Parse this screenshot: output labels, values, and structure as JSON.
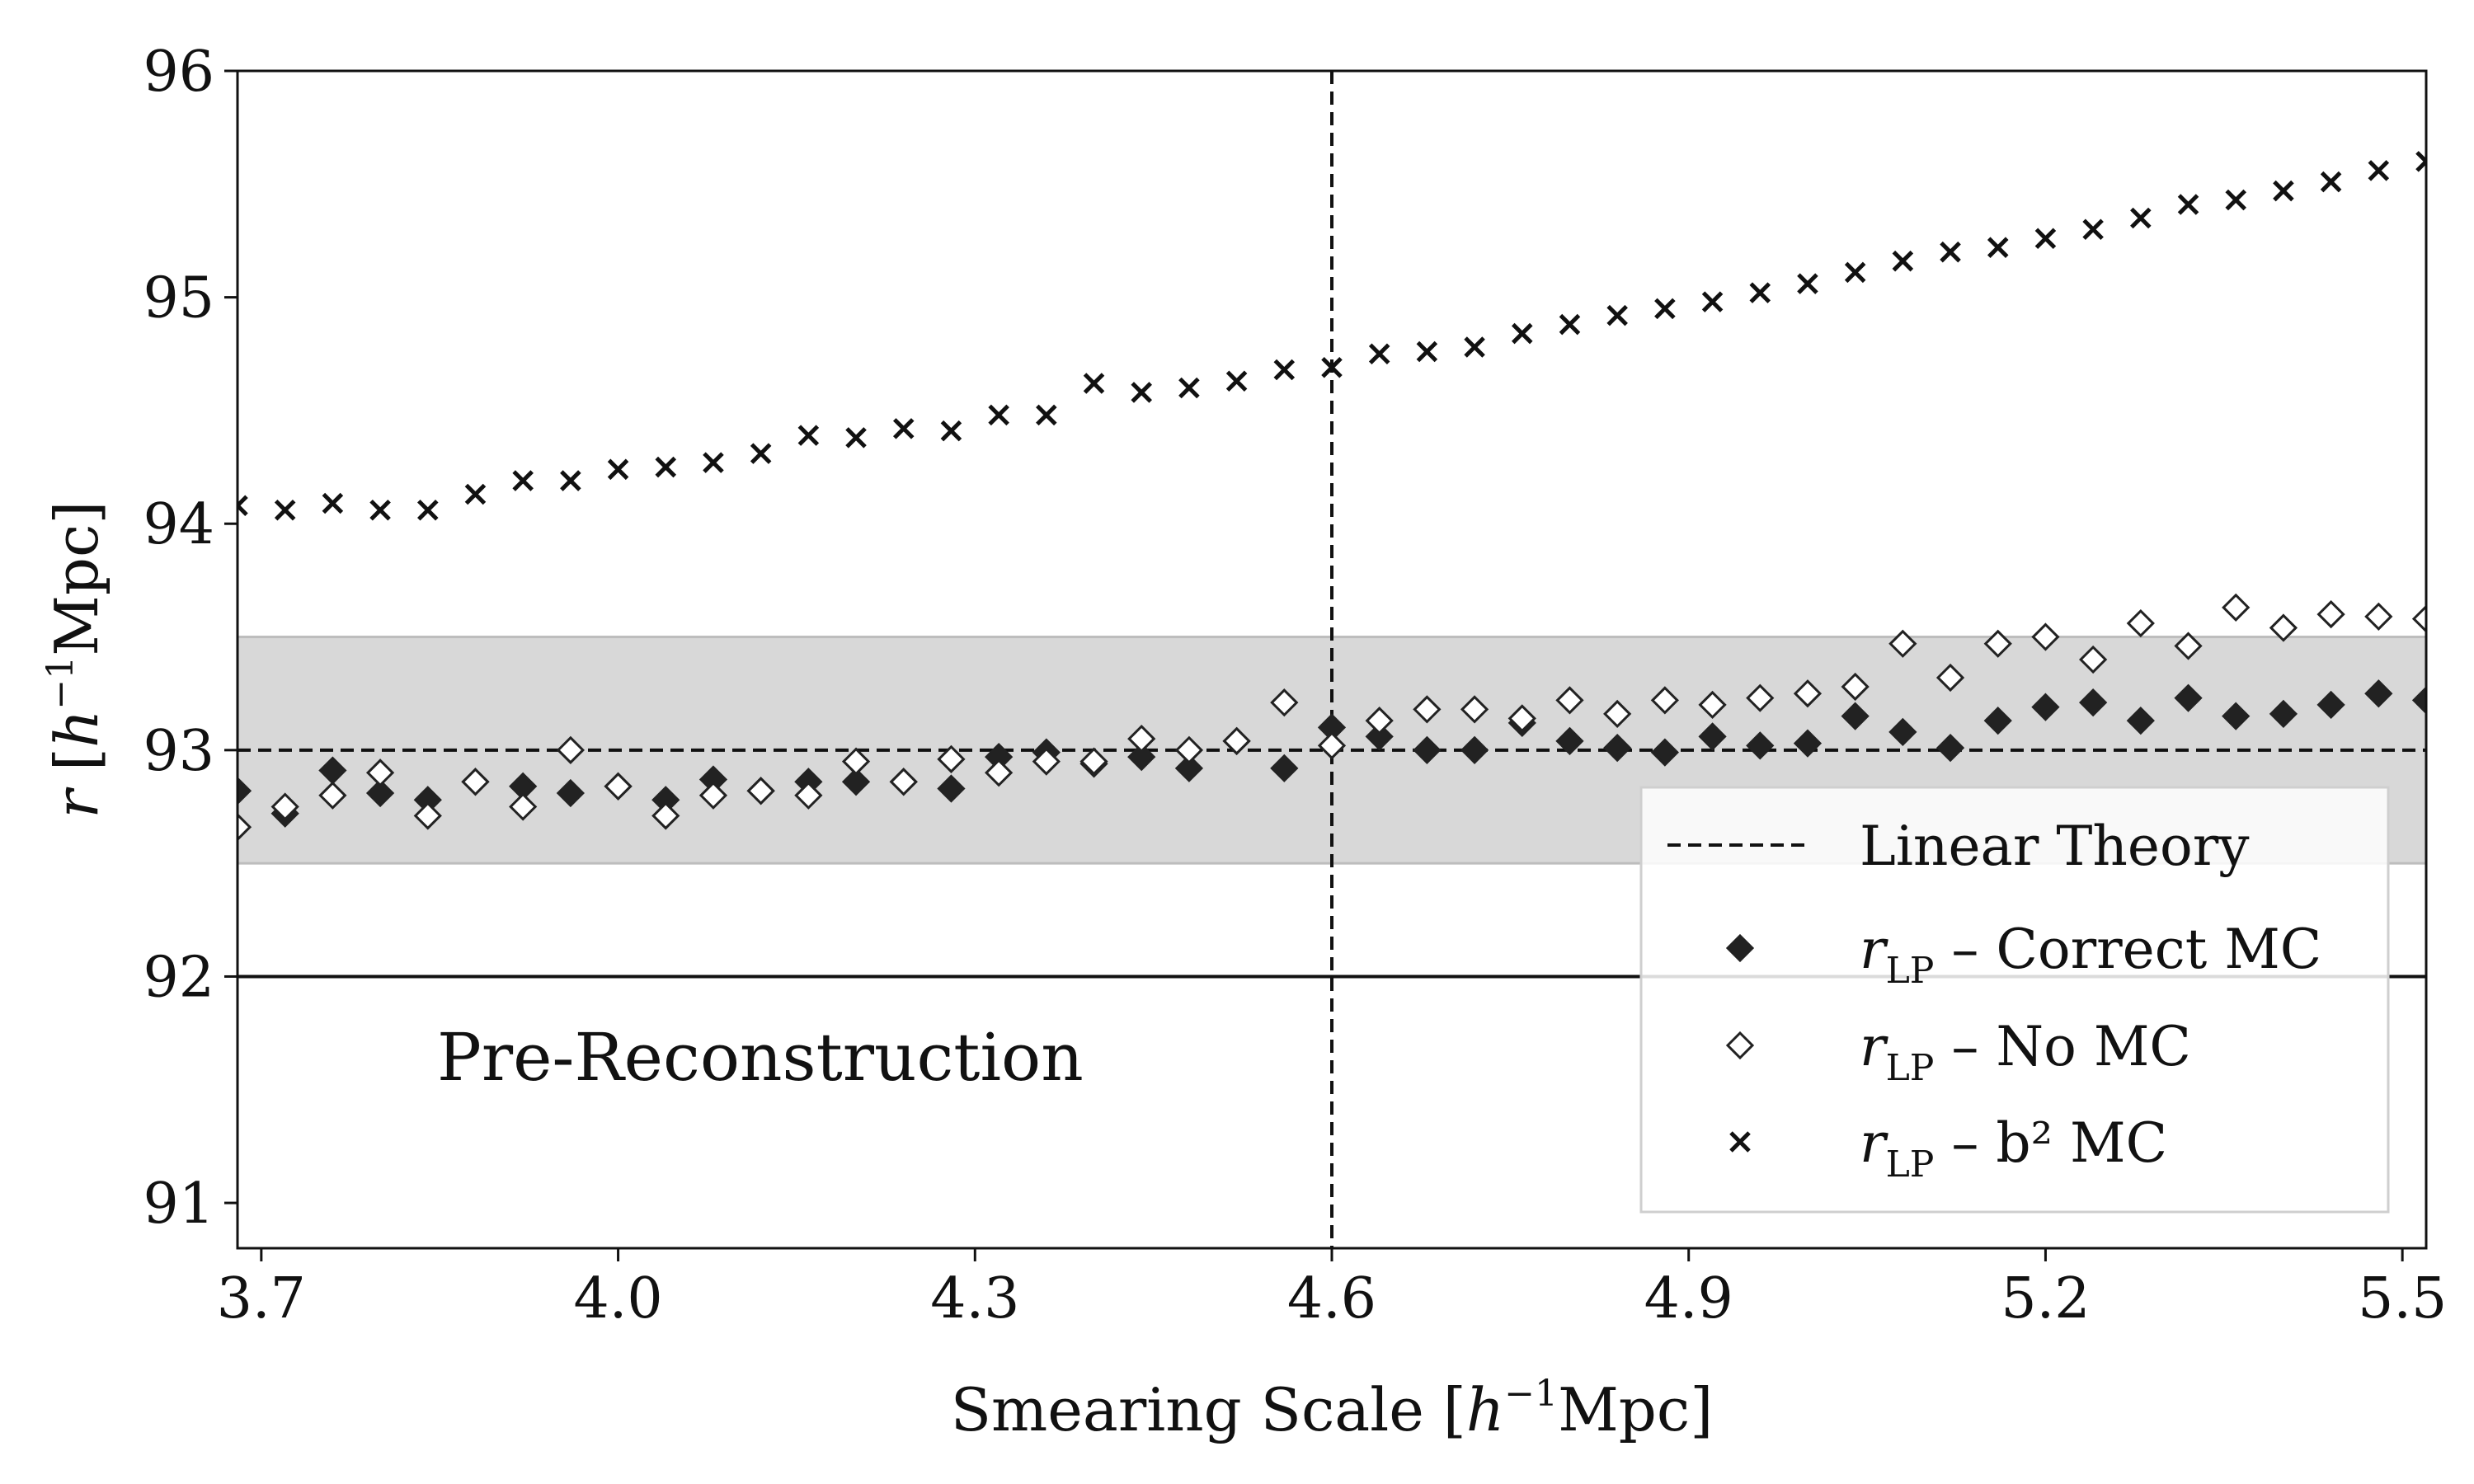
{
  "chart_data": {
    "type": "scatter",
    "xlabel": "Smearing Scale [h⁻¹Mpc]",
    "ylabel": "r [h⁻¹Mpc]",
    "xlim": [
      3.68,
      5.52
    ],
    "ylim": [
      90.8,
      96.0
    ],
    "xticks": [
      "3.7",
      "4.0",
      "4.3",
      "4.6",
      "4.9",
      "5.2",
      "5.5"
    ],
    "yticks": [
      "91",
      "92",
      "93",
      "94",
      "95",
      "96"
    ],
    "reference_lines": {
      "linear_theory": 93.0,
      "pre_reconstruction": 92.0,
      "vertical_marker_x": 4.6,
      "shaded_band": [
        92.5,
        93.5
      ]
    },
    "annotation": "Pre-Reconstruction",
    "legend": {
      "placement": "lower-right",
      "entries": [
        {
          "key": "linear",
          "text": "Linear Theory",
          "marker": "dashed-line"
        },
        {
          "key": "correct",
          "text": "– Correct MC",
          "marker": "filled-diamond"
        },
        {
          "key": "nomc",
          "text": "– No MC",
          "marker": "open-diamond"
        },
        {
          "key": "b2",
          "text": "– b² MC",
          "marker": "cross"
        }
      ],
      "symbol_main": "r",
      "symbol_sub": "LP"
    },
    "x": [
      3.68,
      3.72,
      3.76,
      3.8,
      3.84,
      3.88,
      3.92,
      3.96,
      4.0,
      4.04,
      4.08,
      4.12,
      4.16,
      4.2,
      4.24,
      4.28,
      4.32,
      4.36,
      4.4,
      4.44,
      4.48,
      4.52,
      4.56,
      4.6,
      4.64,
      4.68,
      4.72,
      4.76,
      4.8,
      4.84,
      4.88,
      4.92,
      4.96,
      5.0,
      5.04,
      5.08,
      5.12,
      5.16,
      5.2,
      5.24,
      5.28,
      5.32,
      5.36,
      5.4,
      5.44,
      5.48,
      5.52
    ],
    "series": [
      {
        "name": "r_LP – Correct MC",
        "marker": "filled-diamond",
        "color": "#222222",
        "y": [
          92.82,
          92.72,
          92.91,
          92.81,
          92.78,
          92.86,
          92.84,
          92.81,
          92.84,
          92.78,
          92.87,
          92.82,
          92.86,
          92.86,
          92.86,
          92.83,
          92.97,
          92.99,
          92.94,
          92.97,
          92.92,
          93.04,
          92.92,
          93.1,
          93.06,
          93.0,
          93.0,
          93.12,
          93.04,
          93.01,
          92.99,
          93.06,
          93.02,
          93.03,
          93.15,
          93.08,
          93.01,
          93.13,
          93.19,
          93.21,
          93.13,
          93.23,
          93.15,
          93.16,
          93.2,
          93.25,
          93.22
        ]
      },
      {
        "name": "r_LP – No MC",
        "marker": "open-diamond",
        "color": "#222222",
        "y": [
          92.66,
          92.75,
          92.8,
          92.9,
          92.71,
          92.86,
          92.75,
          93.0,
          92.84,
          92.71,
          92.8,
          92.82,
          92.8,
          92.95,
          92.86,
          92.96,
          92.9,
          92.95,
          92.95,
          93.05,
          93.0,
          93.04,
          93.21,
          93.02,
          93.13,
          93.18,
          93.18,
          93.14,
          93.22,
          93.16,
          93.22,
          93.2,
          93.23,
          93.25,
          93.28,
          93.47,
          93.32,
          93.47,
          93.5,
          93.4,
          93.56,
          93.46,
          93.63,
          93.54,
          93.6,
          93.59,
          93.58
        ]
      },
      {
        "name": "r_LP – b² MC",
        "marker": "cross",
        "color": "#111111",
        "y": [
          94.08,
          94.06,
          94.09,
          94.06,
          94.06,
          94.13,
          94.19,
          94.19,
          94.24,
          94.25,
          94.27,
          94.31,
          94.39,
          94.38,
          94.42,
          94.41,
          94.48,
          94.48,
          94.62,
          94.58,
          94.6,
          94.63,
          94.68,
          94.69,
          94.75,
          94.76,
          94.78,
          94.84,
          94.88,
          94.92,
          94.95,
          94.98,
          95.02,
          95.06,
          95.11,
          95.16,
          95.2,
          95.22,
          95.26,
          95.3,
          95.35,
          95.41,
          95.43,
          95.47,
          95.51,
          95.56,
          95.6
        ]
      }
    ]
  }
}
